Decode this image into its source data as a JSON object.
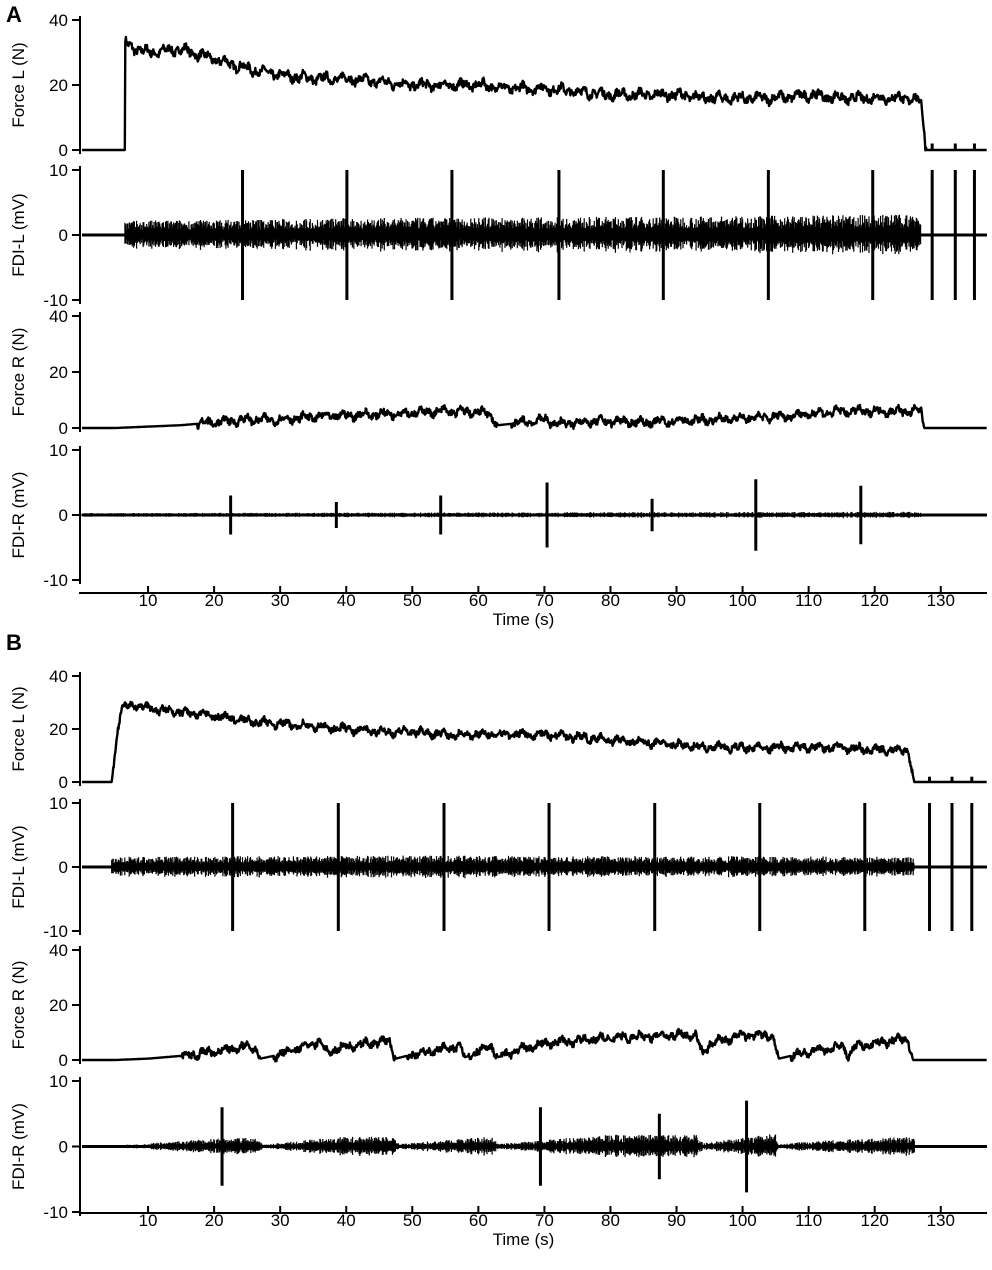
{
  "chart_data": [
    {
      "type": "line",
      "panel": "A",
      "xlabel": "Time (s)",
      "xticks": [
        10,
        20,
        30,
        40,
        50,
        60,
        70,
        80,
        90,
        100,
        110,
        120,
        130
      ],
      "xlim": [
        0,
        137
      ],
      "subplots": [
        {
          "ylabel": "Force L (N)",
          "ylim": [
            0,
            40
          ],
          "yticks": [
            0,
            20,
            40
          ],
          "kind": "force",
          "series": [
            {
              "x": [
                0,
                6.5,
                6.5,
                7,
                10,
                15,
                20,
                25,
                30,
                35,
                40,
                45,
                50,
                55,
                60,
                65,
                70,
                75,
                80,
                85,
                90,
                95,
                100,
                105,
                110,
                115,
                120,
                125,
                127,
                127.8,
                137
              ],
              "y": [
                0,
                0,
                34,
                32,
                30,
                31,
                28,
                25,
                23,
                22,
                22,
                21,
                20,
                20,
                20,
                19,
                19,
                18,
                17,
                17,
                17,
                16,
                16,
                16,
                17,
                16,
                16,
                16,
                15,
                0,
                0
              ]
            }
          ],
          "spikes": [
            128.7,
            132.2,
            135.1
          ],
          "spike_height": 2
        },
        {
          "ylabel": "FDI-L (mV)",
          "ylim": [
            -10,
            10
          ],
          "yticks": [
            -10,
            0,
            10
          ],
          "kind": "emg",
          "burst": [
            6.5,
            127
          ],
          "amplitudes": {
            "x": [
              6.5,
              40,
              80,
              110,
              127
            ],
            "y": [
              2.2,
              2.6,
              2.8,
              3.0,
              3.2
            ]
          },
          "spikes": [
            24.3,
            40.1,
            56.0,
            72.2,
            88.0,
            103.9,
            119.7,
            128.7,
            132.2,
            135.1
          ],
          "spike_height": 10
        },
        {
          "ylabel": "Force R (N)",
          "ylim": [
            0,
            40
          ],
          "yticks": [
            0,
            20,
            40
          ],
          "kind": "force",
          "series": [
            {
              "x": [
                0,
                5,
                10,
                15,
                20,
                25,
                30,
                35,
                40,
                45,
                50,
                55,
                61.5,
                63,
                65,
                70,
                72,
                75,
                80,
                85,
                90,
                95,
                100,
                105,
                110,
                115,
                120,
                125,
                127,
                127.5,
                137
              ],
              "y": [
                0,
                0,
                0.5,
                1,
                2,
                3,
                3,
                4,
                4.5,
                5,
                5.5,
                6,
                5.5,
                1,
                1.5,
                3,
                1.5,
                2,
                2.5,
                2,
                2.5,
                3,
                3.5,
                4,
                5,
                6,
                6,
                6,
                6,
                0,
                0
              ]
            }
          ]
        },
        {
          "ylabel": "FDI-R (mV)",
          "ylim": [
            -10,
            10
          ],
          "yticks": [
            -10,
            0,
            10
          ],
          "kind": "emg",
          "burst": [
            0,
            127
          ],
          "amplitudes": {
            "x": [
              0,
              60,
              127
            ],
            "y": [
              0.3,
              0.4,
              0.5
            ]
          },
          "spikes": [
            22.5,
            38.5,
            54.3,
            70.4,
            86.3,
            102.0,
            117.9
          ],
          "spike_heights": [
            3,
            2,
            3,
            5,
            2.5,
            5.5,
            4.5
          ]
        }
      ]
    },
    {
      "type": "line",
      "panel": "B",
      "xlabel": "Time (s)",
      "xticks": [
        10,
        20,
        30,
        40,
        50,
        60,
        70,
        80,
        90,
        100,
        110,
        120,
        130
      ],
      "xlim": [
        0,
        137
      ],
      "subplots": [
        {
          "ylabel": "Force L (N)",
          "ylim": [
            0,
            40
          ],
          "yticks": [
            0,
            20,
            40
          ],
          "kind": "force",
          "series": [
            {
              "x": [
                0,
                4.5,
                5.5,
                6,
                8,
                12,
                16,
                20,
                25,
                30,
                35,
                40,
                45,
                50,
                55,
                60,
                65,
                70,
                75,
                80,
                85,
                90,
                95,
                100,
                105,
                110,
                115,
                120,
                125,
                126,
                137
              ],
              "y": [
                0,
                0,
                22,
                28,
                29,
                27,
                26,
                25,
                23,
                22,
                21,
                20,
                19,
                19,
                18,
                18,
                18,
                18,
                17,
                16,
                15,
                14,
                13,
                13,
                13,
                13,
                13,
                12,
                12,
                0,
                0
              ]
            }
          ],
          "spikes": [
            128.3,
            131.7,
            134.7
          ],
          "spike_height": 2
        },
        {
          "ylabel": "FDI-L (mV)",
          "ylim": [
            -10,
            10
          ],
          "yticks": [
            -10,
            0,
            10
          ],
          "kind": "emg",
          "burst": [
            4.5,
            126
          ],
          "amplitudes": {
            "x": [
              4.5,
              50,
              126
            ],
            "y": [
              1.6,
              1.8,
              1.6
            ]
          },
          "spikes": [
            22.8,
            38.8,
            54.8,
            70.7,
            86.7,
            102.6,
            118.5,
            128.3,
            131.7,
            134.7
          ],
          "spike_height": 10
        },
        {
          "ylabel": "Force R (N)",
          "ylim": [
            0,
            40
          ],
          "yticks": [
            0,
            20,
            40
          ],
          "kind": "force",
          "series": [
            {
              "x": [
                0,
                5,
                10,
                15,
                20,
                25,
                26.5,
                27,
                30,
                36,
                37,
                40,
                46.5,
                47.5,
                50,
                57,
                58,
                62,
                63,
                65,
                70,
                80,
                90,
                93,
                94,
                95,
                100,
                104.5,
                105.5,
                110,
                115,
                116,
                117,
                120,
                125,
                125.8,
                137
              ],
              "y": [
                0,
                0,
                0.5,
                1.5,
                3,
                5,
                4,
                0.5,
                2,
                7,
                3,
                5,
                7,
                0.5,
                2,
                5,
                1,
                5,
                1,
                3,
                6,
                8,
                9,
                9,
                1.5,
                6,
                9,
                9,
                0.5,
                3,
                5,
                2,
                5,
                6,
                8,
                0,
                0
              ]
            }
          ]
        },
        {
          "ylabel": "FDI-R (mV)",
          "ylim": [
            -10,
            10
          ],
          "yticks": [
            -10,
            0,
            10
          ],
          "kind": "emg",
          "burst": [
            4,
            126
          ],
          "amplitudes": {
            "x": [
              4,
              10,
              20,
              26,
              27.5,
              36,
              40,
              47,
              48,
              60,
              62,
              63,
              80,
              93,
              94,
              105,
              105.5,
              110,
              126
            ],
            "y": [
              0.1,
              0.5,
              1.2,
              1.4,
              0.3,
              1.2,
              1.5,
              1.5,
              0.4,
              1.4,
              1.5,
              0.4,
              1.8,
              1.8,
              0.5,
              2.0,
              0.3,
              0.8,
              1.5
            ]
          },
          "spikes": [
            21.2,
            69.4,
            87.4,
            100.6
          ],
          "spike_heights": [
            6,
            6,
            5,
            7
          ]
        }
      ]
    }
  ]
}
